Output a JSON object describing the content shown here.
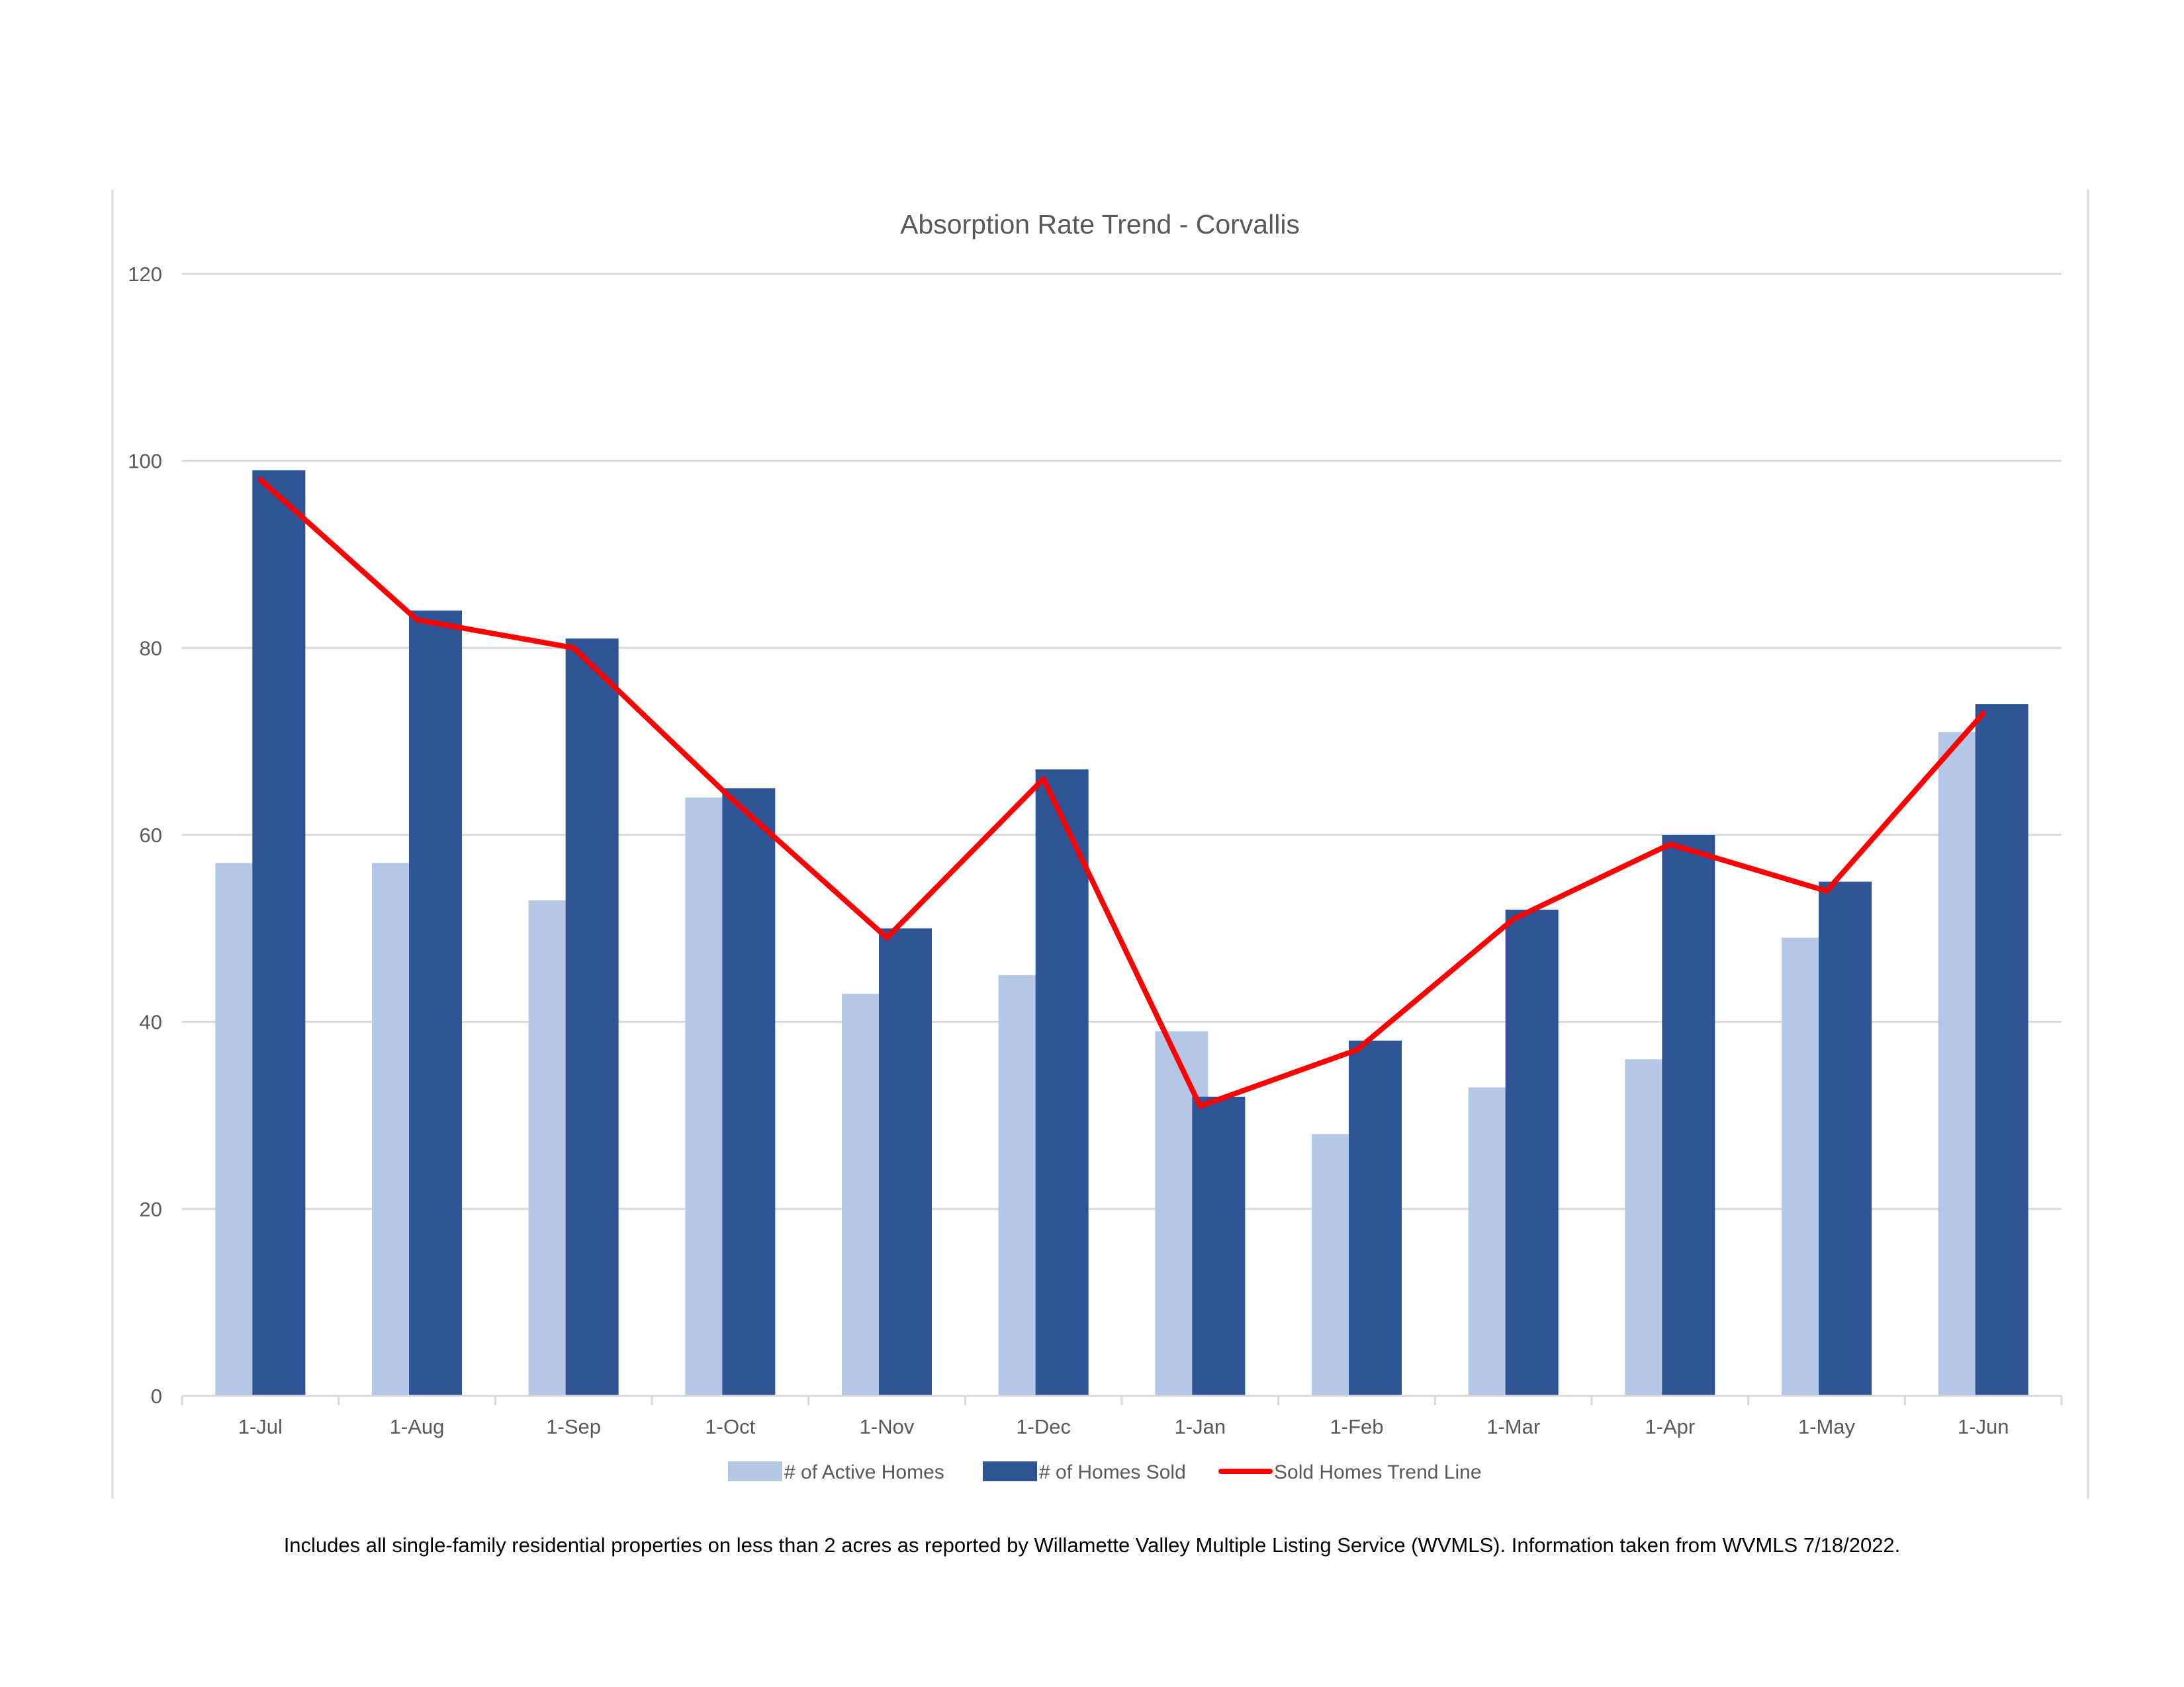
{
  "colors": {
    "active": "#b4c7e7",
    "sold": "#2f5597",
    "trend": "#ff0000",
    "grid": "#d9d9d9",
    "text": "#595959",
    "frame": "#d9d9d9"
  },
  "chart_data": {
    "type": "bar",
    "title": "Absorption Rate Trend - Corvallis",
    "xlabel": "",
    "ylabel": "",
    "ylim": [
      0,
      120
    ],
    "yticks": [
      0,
      20,
      40,
      60,
      80,
      100,
      120
    ],
    "grid": true,
    "legend_position": "bottom",
    "categories": [
      "1-Jul",
      "1-Aug",
      "1-Sep",
      "1-Oct",
      "1-Nov",
      "1-Dec",
      "1-Jan",
      "1-Feb",
      "1-Mar",
      "1-Apr",
      "1-May",
      "1-Jun"
    ],
    "series": [
      {
        "name": "# of Active Homes",
        "type": "bar",
        "color": "#b4c7e7",
        "values": [
          57,
          57,
          53,
          64,
          43,
          45,
          39,
          28,
          33,
          36,
          49,
          71
        ]
      },
      {
        "name": "# of Homes Sold",
        "type": "bar",
        "color": "#2f5597",
        "values": [
          99,
          84,
          81,
          65,
          50,
          67,
          32,
          38,
          52,
          60,
          55,
          74
        ]
      },
      {
        "name": "Sold Homes Trend Line",
        "type": "line",
        "color": "#ff0000",
        "values": [
          98,
          83,
          80,
          64,
          49,
          66,
          31,
          37,
          51,
          59,
          54,
          73
        ]
      }
    ]
  },
  "footnote": "Includes all single-family residential properties on less than 2 acres as reported by Willamette Valley Multiple Listing Service (WVMLS). Information taken from WVMLS 7/18/2022."
}
